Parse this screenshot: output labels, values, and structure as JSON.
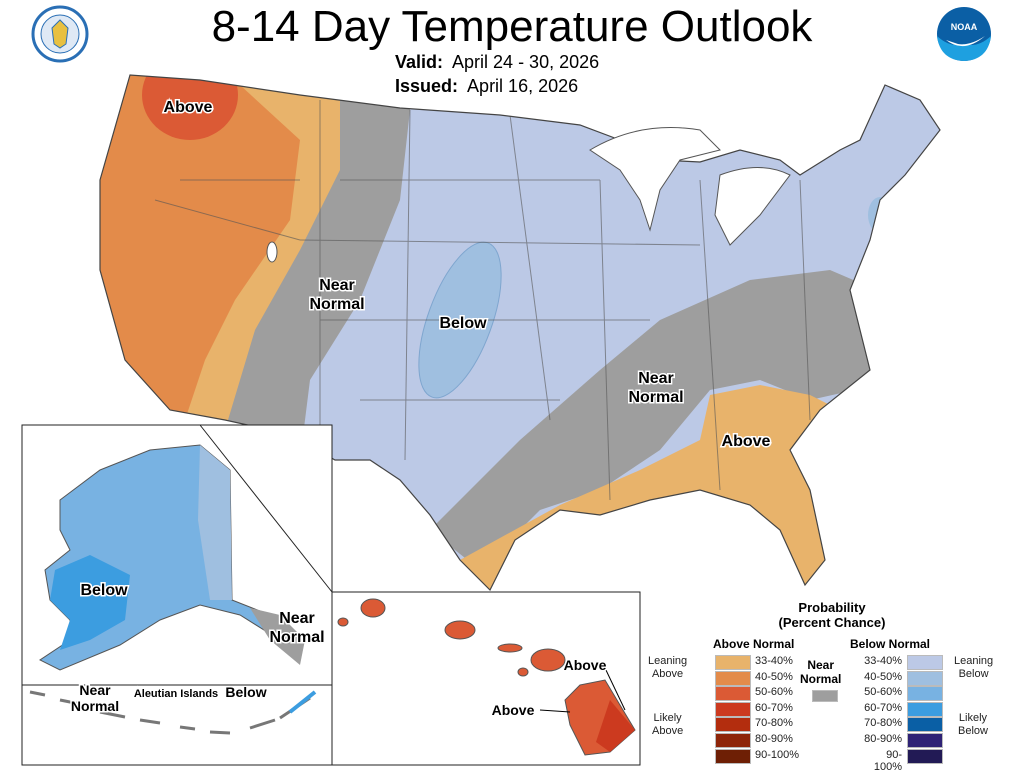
{
  "header": {
    "title": "8-14 Day Temperature Outlook",
    "valid_label": "Valid:",
    "valid_value": "April 24 - 30, 2026",
    "issued_label": "Issued:",
    "issued_value": "April 16, 2026",
    "left_logo": "Department of Commerce seal",
    "right_logo": "NOAA"
  },
  "map": {
    "labels": {
      "nw_above": "Above",
      "west_near_normal": [
        "Near",
        "Normal"
      ],
      "central_below": "Below",
      "se_near_normal": [
        "Near",
        "Normal"
      ],
      "se_above": "Above",
      "alaska_below": "Below",
      "alaska_near_normal": [
        "Near",
        "Normal"
      ],
      "aleutian_near_normal": [
        "Near",
        "Normal"
      ],
      "aleutian_title": "Aleutian Islands",
      "aleutian_below": "Below",
      "hawaii_above_1": "Above",
      "hawaii_above_2": "Above"
    }
  },
  "legend": {
    "title": "Probability",
    "subtitle": "(Percent Chance)",
    "above_header": "Above Normal",
    "below_header": "Below Normal",
    "near_label": [
      "Near",
      "Normal"
    ],
    "near_color": "#9e9e9e",
    "leaning_above": [
      "Leaning",
      "Above"
    ],
    "likely_above": [
      "Likely",
      "Above"
    ],
    "leaning_below": [
      "Leaning",
      "Below"
    ],
    "likely_below": [
      "Likely",
      "Below"
    ],
    "above": [
      {
        "range": "33-40%",
        "color": "#e8b36b"
      },
      {
        "range": "40-50%",
        "color": "#e38b4a"
      },
      {
        "range": "50-60%",
        "color": "#db5a35"
      },
      {
        "range": "60-70%",
        "color": "#cc3a1f"
      },
      {
        "range": "70-80%",
        "color": "#b32d0e"
      },
      {
        "range": "80-90%",
        "color": "#8e2509"
      },
      {
        "range": "90-100%",
        "color": "#6e1f05"
      }
    ],
    "below": [
      {
        "range": "33-40%",
        "color": "#bcc9e6"
      },
      {
        "range": "40-50%",
        "color": "#9fbfe0"
      },
      {
        "range": "50-60%",
        "color": "#78b2e2"
      },
      {
        "range": "60-70%",
        "color": "#3c9de0"
      },
      {
        "range": "70-80%",
        "color": "#0a5fa5"
      },
      {
        "range": "80-90%",
        "color": "#2e2275"
      },
      {
        "range": "90-100%",
        "color": "#221a55"
      }
    ]
  }
}
